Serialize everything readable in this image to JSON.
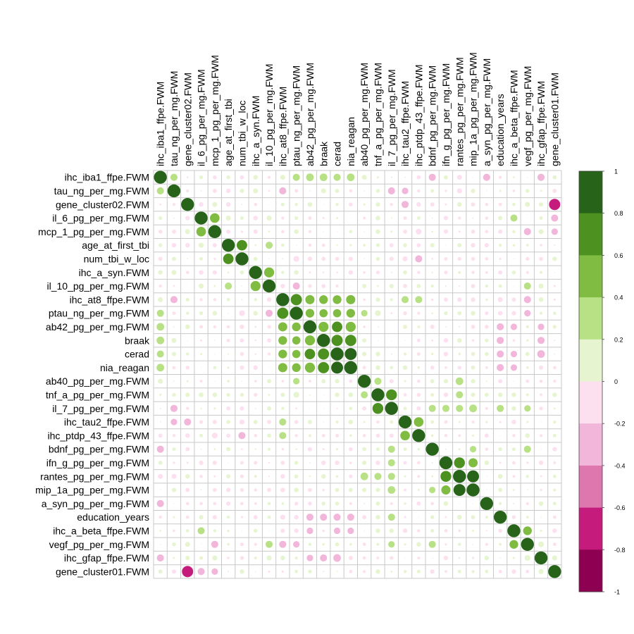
{
  "chart_data": {
    "type": "heatmap",
    "subtype": "correlation-circle-matrix",
    "title": "",
    "variables": [
      "ihc_iba1_ffpe.FWM",
      "tau_ng_per_mg.FWM",
      "gene_cluster02.FWM",
      "il_6_pg_per_mg.FWM",
      "mcp_1_pg_per_mg.FWM",
      "age_at_first_tbi",
      "num_tbi_w_loc",
      "ihc_a_syn.FWM",
      "il_10_pg_per_mg.FWM",
      "ihc_at8_ffpe.FWM",
      "ptau_ng_per_mg.FWM",
      "ab42_pg_per_mg.FWM",
      "braak",
      "cerad",
      "nia_reagan",
      "ab40_pg_per_mg.FWM",
      "tnf_a_pg_per_mg.FWM",
      "il_7_pg_per_mg.FWM",
      "ihc_tau2_ffpe.FWM",
      "ihc_ptdp_43_ffpe.FWM",
      "bdnf_pg_per_mg.FWM",
      "ifn_g_pg_per_mg.FWM",
      "rantes_pg_per_mg.FWM",
      "mip_1a_pg_per_mg.FWM",
      "a_syn_pg_per_mg.FWM",
      "education_years",
      "ihc_a_beta_ffpe.FWM",
      "vegf_pg_per_mg.FWM",
      "ihc_gfap_ffpe.FWM",
      "gene_cluster01.FWM"
    ],
    "correlations": [
      {
        "row": 0,
        "col": 1,
        "r": 0.3
      },
      {
        "row": 0,
        "col": 10,
        "r": 0.3
      },
      {
        "row": 0,
        "col": 11,
        "r": 0.35
      },
      {
        "row": 0,
        "col": 12,
        "r": 0.35
      },
      {
        "row": 0,
        "col": 13,
        "r": 0.3
      },
      {
        "row": 0,
        "col": 14,
        "r": 0.35
      },
      {
        "row": 0,
        "col": 20,
        "r": -0.3
      },
      {
        "row": 0,
        "col": 24,
        "r": -0.3
      },
      {
        "row": 0,
        "col": 28,
        "r": -0.3
      },
      {
        "row": 0,
        "col": 9,
        "r": 0.15
      },
      {
        "row": 0,
        "col": 15,
        "r": 0.15
      },
      {
        "row": 0,
        "col": 22,
        "r": -0.15
      },
      {
        "row": 1,
        "col": 9,
        "r": -0.3
      },
      {
        "row": 1,
        "col": 17,
        "r": -0.3
      },
      {
        "row": 1,
        "col": 18,
        "r": -0.35
      },
      {
        "row": 1,
        "col": 7,
        "r": 0.15
      },
      {
        "row": 1,
        "col": 12,
        "r": 0.15
      },
      {
        "row": 1,
        "col": 22,
        "r": -0.15
      },
      {
        "row": 2,
        "col": 29,
        "r": -0.75
      },
      {
        "row": 2,
        "col": 18,
        "r": -0.2
      },
      {
        "row": 2,
        "col": 4,
        "r": 0.15
      },
      {
        "row": 2,
        "col": 27,
        "r": 0.15
      },
      {
        "row": 3,
        "col": 4,
        "r": 0.55
      },
      {
        "row": 3,
        "col": 26,
        "r": 0.3
      },
      {
        "row": 3,
        "col": 29,
        "r": -0.3
      },
      {
        "row": 3,
        "col": 5,
        "r": 0.15
      },
      {
        "row": 3,
        "col": 8,
        "r": 0.15
      },
      {
        "row": 4,
        "col": 27,
        "r": -0.3
      },
      {
        "row": 4,
        "col": 29,
        "r": -0.25
      },
      {
        "row": 4,
        "col": 28,
        "r": 0.15
      },
      {
        "row": 5,
        "col": 6,
        "r": 0.65
      },
      {
        "row": 5,
        "col": 8,
        "r": 0.3
      },
      {
        "row": 5,
        "col": 3,
        "r": 0.15
      },
      {
        "row": 6,
        "col": 19,
        "r": -0.3
      },
      {
        "row": 6,
        "col": 10,
        "r": -0.2
      },
      {
        "row": 6,
        "col": 18,
        "r": -0.15
      },
      {
        "row": 7,
        "col": 8,
        "r": 0.6
      },
      {
        "row": 7,
        "col": 7,
        "r": 1
      },
      {
        "row": 8,
        "col": 5,
        "r": 0.3
      },
      {
        "row": 8,
        "col": 10,
        "r": -0.3
      },
      {
        "row": 8,
        "col": 27,
        "r": 0.3
      },
      {
        "row": 8,
        "col": 28,
        "r": 0.15
      },
      {
        "row": 9,
        "col": 10,
        "r": 0.75
      },
      {
        "row": 9,
        "col": 11,
        "r": 0.5
      },
      {
        "row": 9,
        "col": 12,
        "r": 0.45
      },
      {
        "row": 9,
        "col": 13,
        "r": 0.45
      },
      {
        "row": 9,
        "col": 14,
        "r": 0.5
      },
      {
        "row": 9,
        "col": 18,
        "r": 0.3
      },
      {
        "row": 9,
        "col": 19,
        "r": 0.3
      },
      {
        "row": 9,
        "col": 27,
        "r": -0.3
      },
      {
        "row": 10,
        "col": 11,
        "r": 0.45
      },
      {
        "row": 10,
        "col": 12,
        "r": 0.4
      },
      {
        "row": 10,
        "col": 13,
        "r": 0.4
      },
      {
        "row": 10,
        "col": 14,
        "r": 0.45
      },
      {
        "row": 10,
        "col": 15,
        "r": 0.25
      },
      {
        "row": 10,
        "col": 16,
        "r": 0.2
      },
      {
        "row": 10,
        "col": 27,
        "r": -0.25
      },
      {
        "row": 11,
        "col": 12,
        "r": 0.6
      },
      {
        "row": 11,
        "col": 13,
        "r": 0.65
      },
      {
        "row": 11,
        "col": 14,
        "r": 0.6
      },
      {
        "row": 11,
        "col": 26,
        "r": -0.25
      },
      {
        "row": 11,
        "col": 28,
        "r": -0.25
      },
      {
        "row": 12,
        "col": 13,
        "r": 0.75
      },
      {
        "row": 12,
        "col": 14,
        "r": 0.75
      },
      {
        "row": 12,
        "col": 28,
        "r": -0.3
      },
      {
        "row": 13,
        "col": 14,
        "r": 0.85
      },
      {
        "row": 13,
        "col": 26,
        "r": -0.25
      },
      {
        "row": 13,
        "col": 28,
        "r": -0.35
      },
      {
        "row": 14,
        "col": 26,
        "r": -0.25
      },
      {
        "row": 15,
        "col": 16,
        "r": 0.3
      },
      {
        "row": 15,
        "col": 22,
        "r": 0.35
      },
      {
        "row": 16,
        "col": 17,
        "r": 0.7
      },
      {
        "row": 16,
        "col": 22,
        "r": 0.3
      },
      {
        "row": 17,
        "col": 20,
        "r": 0.3
      },
      {
        "row": 17,
        "col": 21,
        "r": 0.3
      },
      {
        "row": 17,
        "col": 22,
        "r": 0.3
      },
      {
        "row": 17,
        "col": 23,
        "r": 0.35
      },
      {
        "row": 17,
        "col": 25,
        "r": 0.3
      },
      {
        "row": 17,
        "col": 27,
        "r": 0.25
      },
      {
        "row": 18,
        "col": 19,
        "r": 0.55
      },
      {
        "row": 18,
        "col": 2,
        "r": -0.3
      },
      {
        "row": 18,
        "col": 1,
        "r": -0.25
      },
      {
        "row": 19,
        "col": 6,
        "r": -0.3
      },
      {
        "row": 19,
        "col": 4,
        "r": -0.2
      },
      {
        "row": 20,
        "col": 23,
        "r": 0.25
      },
      {
        "row": 20,
        "col": 27,
        "r": 0.3
      },
      {
        "row": 21,
        "col": 22,
        "r": 0.7
      },
      {
        "row": 21,
        "col": 23,
        "r": 0.5
      },
      {
        "row": 22,
        "col": 23,
        "r": 0.85
      },
      {
        "row": 24,
        "col": 0,
        "r": -0.3
      },
      {
        "row": 25,
        "col": 11,
        "r": -0.3
      },
      {
        "row": 25,
        "col": 12,
        "r": -0.3
      },
      {
        "row": 25,
        "col": 13,
        "r": -0.3
      },
      {
        "row": 25,
        "col": 14,
        "r": -0.3
      },
      {
        "row": 25,
        "col": 9,
        "r": -0.15
      },
      {
        "row": 26,
        "col": 27,
        "r": 0.45
      },
      {
        "row": 27,
        "col": 28,
        "r": 0.2
      },
      {
        "row": 28,
        "col": 29,
        "r": 0.15
      },
      {
        "row": 29,
        "col": 0,
        "r": 0.1
      }
    ],
    "colorbar_ticks": [
      "1",
      "0.8",
      "0.6",
      "0.4",
      "0.2",
      "0",
      "-0.2",
      "-0.4",
      "-0.6",
      "-0.8",
      "-1"
    ],
    "colorbar_colors": [
      "#276419",
      "#4D9221",
      "#7FBC41",
      "#B8E186",
      "#E6F5D0",
      "#FDE0EF",
      "#F1B6DA",
      "#DE77AE",
      "#C51B7D",
      "#8E0152"
    ],
    "range": [
      -1,
      1
    ],
    "grid": true,
    "legend_position": "right"
  },
  "colors": {
    "grid": "#c8c8c8",
    "text": "#000000"
  }
}
